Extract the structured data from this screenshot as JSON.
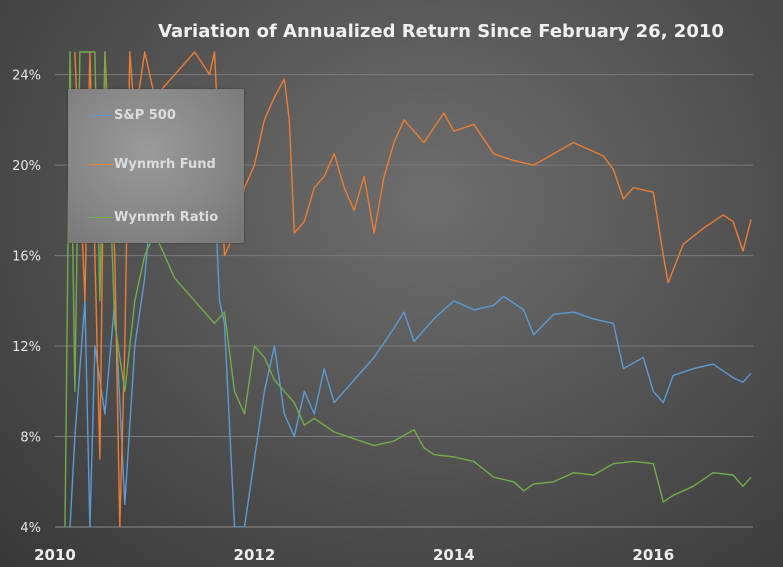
{
  "chart_data": {
    "type": "line",
    "title": "Variation of Annualized Return Since February 26, 2010",
    "xlabel": "",
    "ylabel": "",
    "x_ticks": [
      "2010",
      "2012",
      "2014",
      "2016"
    ],
    "y_ticks": [
      "4%",
      "8%",
      "12%",
      "16%",
      "20%",
      "24%"
    ],
    "xlim": [
      2010.0,
      2017.0
    ],
    "ylim": [
      4,
      25
    ],
    "grid": true,
    "legend_placement": "top-left",
    "series": [
      {
        "name": "S&P 500",
        "color": "#5b9bd5",
        "x": [
          2010.15,
          2010.2,
          2010.3,
          2010.35,
          2010.4,
          2010.5,
          2010.6,
          2010.7,
          2010.8,
          2010.9,
          2011.0,
          2011.1,
          2011.2,
          2011.3,
          2011.4,
          2011.5,
          2011.6,
          2011.65,
          2011.7,
          2011.8,
          2011.9,
          2012.0,
          2012.1,
          2012.2,
          2012.3,
          2012.4,
          2012.5,
          2012.6,
          2012.7,
          2012.8,
          2012.9,
          2013.0,
          2013.2,
          2013.4,
          2013.5,
          2013.6,
          2013.8,
          2014.0,
          2014.2,
          2014.4,
          2014.5,
          2014.7,
          2014.8,
          2015.0,
          2015.2,
          2015.4,
          2015.6,
          2015.7,
          2015.9,
          2016.0,
          2016.1,
          2016.2,
          2016.4,
          2016.6,
          2016.8,
          2016.9,
          2016.98
        ],
        "y": [
          4,
          8,
          14,
          4,
          12,
          9,
          14,
          5,
          12,
          15,
          20,
          17,
          19,
          18,
          20,
          18,
          19,
          14,
          13,
          4,
          4,
          7,
          10,
          12,
          9,
          8,
          10,
          9,
          11,
          9.5,
          10,
          10.5,
          11.5,
          12.8,
          13.5,
          12.2,
          13.2,
          14.0,
          13.6,
          13.8,
          14.2,
          13.6,
          12.5,
          13.4,
          13.5,
          13.2,
          13.0,
          11.0,
          11.5,
          10.0,
          9.5,
          10.7,
          11.0,
          11.2,
          10.6,
          10.4,
          10.8
        ]
      },
      {
        "name": "Wynmrh Fund",
        "color": "#ed7d31",
        "x": [
          2010.2,
          2010.3,
          2010.35,
          2010.45,
          2010.5,
          2010.6,
          2010.65,
          2010.7,
          2010.75,
          2010.8,
          2010.9,
          2011.0,
          2011.2,
          2011.4,
          2011.55,
          2011.6,
          2011.7,
          2011.8,
          2011.9,
          2012.0,
          2012.1,
          2012.2,
          2012.3,
          2012.35,
          2012.4,
          2012.5,
          2012.6,
          2012.7,
          2012.8,
          2012.9,
          2013.0,
          2013.1,
          2013.2,
          2013.3,
          2013.4,
          2013.5,
          2013.7,
          2013.9,
          2014.0,
          2014.2,
          2014.4,
          2014.6,
          2014.8,
          2015.0,
          2015.2,
          2015.4,
          2015.5,
          2015.6,
          2015.7,
          2015.8,
          2016.0,
          2016.1,
          2016.15,
          2016.3,
          2016.5,
          2016.7,
          2016.8,
          2016.9,
          2016.98
        ],
        "y": [
          25,
          14,
          25,
          7,
          25,
          16,
          4,
          12,
          25,
          22,
          25,
          23,
          24,
          25,
          24,
          25,
          16,
          17,
          19,
          20,
          22,
          23,
          23.8,
          22,
          17,
          17.5,
          19,
          19.5,
          20.5,
          19,
          18,
          19.5,
          17,
          19.5,
          21,
          22,
          21,
          22.3,
          21.5,
          21.8,
          20.5,
          20.2,
          20.0,
          20.5,
          21.0,
          20.6,
          20.4,
          19.8,
          18.5,
          19.0,
          18.8,
          16.0,
          14.8,
          16.5,
          17.2,
          17.8,
          17.5,
          16.2,
          17.6
        ]
      },
      {
        "name": "Wynmrh Ratio",
        "color": "#70ad47",
        "x": [
          2010.1,
          2010.15,
          2010.2,
          2010.25,
          2010.3,
          2010.4,
          2010.45,
          2010.5,
          2010.6,
          2010.7,
          2010.8,
          2010.9,
          2011.0,
          2011.2,
          2011.4,
          2011.6,
          2011.7,
          2011.8,
          2011.9,
          2012.0,
          2012.1,
          2012.2,
          2012.3,
          2012.4,
          2012.5,
          2012.6,
          2012.8,
          2013.0,
          2013.2,
          2013.4,
          2013.6,
          2013.7,
          2013.8,
          2014.0,
          2014.2,
          2014.4,
          2014.6,
          2014.7,
          2014.8,
          2015.0,
          2015.2,
          2015.4,
          2015.6,
          2015.8,
          2016.0,
          2016.1,
          2016.2,
          2016.4,
          2016.6,
          2016.8,
          2016.9,
          2016.98
        ],
        "y": [
          4,
          25,
          10,
          25,
          25,
          25,
          14,
          25,
          13,
          10,
          14,
          16,
          17,
          15,
          14,
          13,
          13.5,
          10,
          9,
          12,
          11.5,
          10.5,
          10,
          9.5,
          8.5,
          8.8,
          8.2,
          7.9,
          7.6,
          7.8,
          8.3,
          7.5,
          7.2,
          7.1,
          6.9,
          6.2,
          6.0,
          5.6,
          5.9,
          6.0,
          6.4,
          6.3,
          6.8,
          6.9,
          6.8,
          5.1,
          5.4,
          5.8,
          6.4,
          6.3,
          5.8,
          6.2
        ]
      }
    ]
  }
}
